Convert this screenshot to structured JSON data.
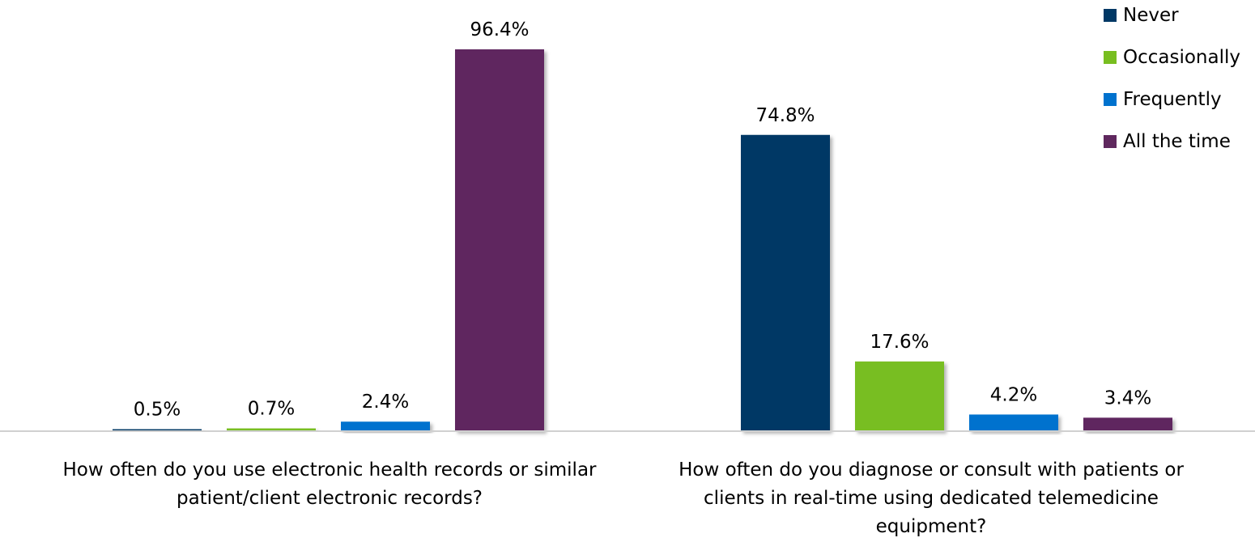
{
  "chart_data": {
    "type": "bar",
    "categories": [
      [
        "How often do you use electronic health records or similar",
        "patient/client electronic records?"
      ],
      [
        "How often do you diagnose or consult with patients or",
        "clients in real-time using dedicated telemedicine",
        "equipment?"
      ]
    ],
    "series": [
      {
        "name": "Never",
        "color": "#003865",
        "values": [
          0.5,
          74.8
        ],
        "labels": [
          "0.5%",
          "74.8%"
        ]
      },
      {
        "name": "Occasionally",
        "color": "#78BE20",
        "values": [
          0.7,
          17.6
        ],
        "labels": [
          "0.7%",
          "17.6%"
        ]
      },
      {
        "name": "Frequently",
        "color": "#0072CE",
        "values": [
          2.4,
          4.2
        ],
        "labels": [
          "2.4%",
          "4.2%"
        ]
      },
      {
        "name": "All the time",
        "color": "#5F285E",
        "values": [
          96.4,
          3.4
        ],
        "labels": [
          "96.4%",
          "3.4%"
        ]
      }
    ],
    "ylim": [
      0,
      100
    ],
    "value_unit": "%",
    "grid": false,
    "legend_position": "top-right"
  }
}
